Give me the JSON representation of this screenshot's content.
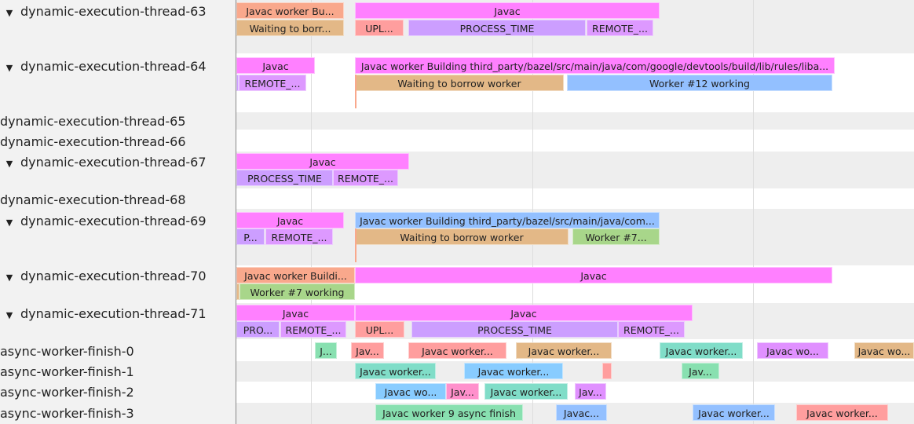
{
  "colors": {
    "javac": "#ff80ff",
    "worker": "#f9a88c",
    "wait": "#e3b887",
    "process": "#cc9eff",
    "remote": "#dd99ff",
    "upl": "#ff9e9e",
    "blue": "#93c0ff",
    "green": "#a8d68a",
    "teal": "#80ddc8",
    "lightblue": "#88ccff",
    "mint": "#88e0b0",
    "violet": "#e090ff",
    "rose": "#ff90cc",
    "row_shade": "#eeeeee"
  },
  "rows": [
    {
      "name": "dynamic-execution-thread-63",
      "expanded": true,
      "slices": [
        {
          "label": "Javac worker Bu...",
          "color": "#f9a88c"
        },
        {
          "label": "Javac",
          "color": "#ff80ff"
        },
        {
          "label": "Waiting to borr...",
          "color": "#e3b887"
        },
        {
          "label": "UPL...",
          "color": "#ff9e9e"
        },
        {
          "label": "PROCESS_TIME",
          "color": "#cc9eff"
        },
        {
          "label": "REMOTE_...",
          "color": "#dd99ff"
        }
      ]
    },
    {
      "name": "dynamic-execution-thread-64",
      "expanded": true,
      "slices": [
        {
          "label": "Javac",
          "color": "#ff80ff"
        },
        {
          "label": "Javac worker Building third_party/bazel/src/main/java/com/google/devtools/build/lib/rules/liba...",
          "color": "#ff80ff"
        },
        {
          "label": "",
          "color": "#cc9eff"
        },
        {
          "label": "REMOTE_...",
          "color": "#dd99ff"
        },
        {
          "label": "Waiting to borrow worker",
          "color": "#e3b887"
        },
        {
          "label": "Worker #12 working",
          "color": "#93c0ff"
        },
        {
          "label": "",
          "color": "#f9a88c"
        }
      ]
    },
    {
      "name": "dynamic-execution-thread-65",
      "expanded": null,
      "slices": []
    },
    {
      "name": "dynamic-execution-thread-66",
      "expanded": null,
      "slices": []
    },
    {
      "name": "dynamic-execution-thread-67",
      "expanded": true,
      "slices": [
        {
          "label": "Javac",
          "color": "#ff80ff"
        },
        {
          "label": "PROCESS_TIME",
          "color": "#cc9eff"
        },
        {
          "label": "REMOTE_...",
          "color": "#dd99ff"
        }
      ]
    },
    {
      "name": "dynamic-execution-thread-68",
      "expanded": null,
      "slices": []
    },
    {
      "name": "dynamic-execution-thread-69",
      "expanded": true,
      "slices": [
        {
          "label": "Javac",
          "color": "#ff80ff"
        },
        {
          "label": "Javac worker Building third_party/bazel/src/main/java/com...",
          "color": "#93c0ff"
        },
        {
          "label": "P...",
          "color": "#cc9eff"
        },
        {
          "label": "REMOTE_...",
          "color": "#dd99ff"
        },
        {
          "label": "Waiting to borrow worker",
          "color": "#e3b887"
        },
        {
          "label": "Worker #7...",
          "color": "#a8d68a"
        },
        {
          "label": "",
          "color": "#f9a88c"
        }
      ]
    },
    {
      "name": "dynamic-execution-thread-70",
      "expanded": true,
      "slices": [
        {
          "label": "Javac worker Buildi...",
          "color": "#f9a88c"
        },
        {
          "label": "Javac",
          "color": "#ff80ff"
        },
        {
          "label": "",
          "color": "#e3b887"
        },
        {
          "label": "Worker #7 working",
          "color": "#a8d68a"
        }
      ]
    },
    {
      "name": "dynamic-execution-thread-71",
      "expanded": true,
      "slices": [
        {
          "label": "Javac",
          "color": "#ff80ff"
        },
        {
          "label": "Javac",
          "color": "#ff80ff"
        },
        {
          "label": "PRO...",
          "color": "#cc9eff"
        },
        {
          "label": "REMOTE_...",
          "color": "#dd99ff"
        },
        {
          "label": "UPL...",
          "color": "#ff9e9e"
        },
        {
          "label": "PROCESS_TIME",
          "color": "#cc9eff"
        },
        {
          "label": "REMOTE_...",
          "color": "#dd99ff"
        }
      ]
    },
    {
      "name": "async-worker-finish-0",
      "expanded": null,
      "slices": [
        {
          "label": "J...",
          "color": "#88e0b0"
        },
        {
          "label": "Jav...",
          "color": "#ff9e9e"
        },
        {
          "label": "Javac worker...",
          "color": "#ff9e9e"
        },
        {
          "label": "Javac worker...",
          "color": "#e3b887"
        },
        {
          "label": "Javac worker...",
          "color": "#80ddc8"
        },
        {
          "label": "Javac wo...",
          "color": "#e090ff"
        },
        {
          "label": "Javac wo...",
          "color": "#e3b887"
        }
      ]
    },
    {
      "name": "async-worker-finish-1",
      "expanded": null,
      "slices": [
        {
          "label": "Javac worker...",
          "color": "#80ddc8"
        },
        {
          "label": "Javac worker...",
          "color": "#88ccff"
        },
        {
          "label": "",
          "color": "#ff9e9e"
        },
        {
          "label": "Jav...",
          "color": "#88e0b0"
        }
      ]
    },
    {
      "name": "async-worker-finish-2",
      "expanded": null,
      "slices": [
        {
          "label": "Javac wo...",
          "color": "#88ccff"
        },
        {
          "label": "Jav...",
          "color": "#ff90cc"
        },
        {
          "label": "Javac worker...",
          "color": "#80ddc8"
        },
        {
          "label": "Jav...",
          "color": "#e090ff"
        }
      ]
    },
    {
      "name": "async-worker-finish-3",
      "expanded": null,
      "slices": [
        {
          "label": "Javac worker 9 async finish",
          "color": "#88e0b0"
        },
        {
          "label": "Javac...",
          "color": "#93c0ff"
        },
        {
          "label": "Javac worker...",
          "color": "#93c0ff"
        },
        {
          "label": "Javac worker...",
          "color": "#ff9e9e"
        }
      ]
    }
  ]
}
